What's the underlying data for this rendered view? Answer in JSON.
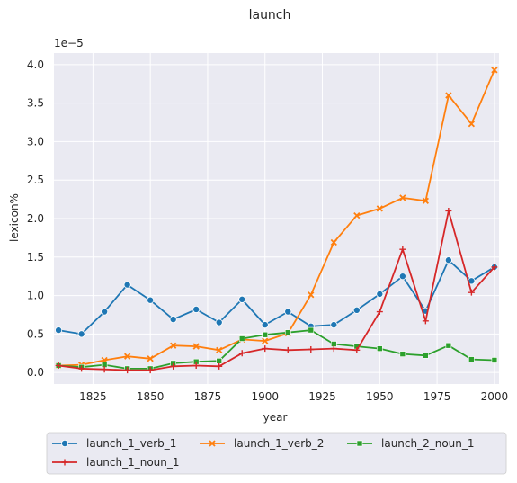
{
  "chart_data": {
    "type": "line",
    "title": "launch",
    "xlabel": "year",
    "ylabel": "lexicon%",
    "y_offset_label": "1e−5",
    "x": [
      1810,
      1820,
      1830,
      1840,
      1850,
      1860,
      1870,
      1880,
      1890,
      1900,
      1910,
      1920,
      1930,
      1940,
      1950,
      1960,
      1970,
      1980,
      1990,
      2000
    ],
    "xlim": [
      1808,
      2002
    ],
    "ylim": [
      -0.15,
      4.15
    ],
    "xticks": [
      "1825",
      "1850",
      "1875",
      "1900",
      "1925",
      "1950",
      "1975",
      "2000"
    ],
    "yticks": [
      "0.0",
      "0.5",
      "1.0",
      "1.5",
      "2.0",
      "2.5",
      "3.0",
      "3.5",
      "4.0"
    ],
    "grid": true,
    "legend_position": "bottom",
    "series": [
      {
        "name": "launch_1_verb_1",
        "color": "#1f77b4",
        "marker": "circle",
        "values": [
          0.55,
          0.5,
          0.79,
          1.14,
          0.94,
          0.69,
          0.82,
          0.65,
          0.95,
          0.62,
          0.79,
          0.6,
          0.62,
          0.81,
          1.02,
          1.25,
          0.8,
          1.46,
          1.19,
          1.37
        ]
      },
      {
        "name": "launch_1_verb_2",
        "color": "#ff7f0e",
        "marker": "x",
        "values": [
          0.09,
          0.1,
          0.16,
          0.21,
          0.18,
          0.35,
          0.34,
          0.29,
          0.43,
          0.41,
          0.51,
          1.01,
          1.69,
          2.04,
          2.13,
          2.27,
          2.23,
          3.6,
          3.23,
          3.93
        ]
      },
      {
        "name": "launch_2_noun_1",
        "color": "#2ca02c",
        "marker": "square",
        "values": [
          0.09,
          0.07,
          0.1,
          0.05,
          0.05,
          0.12,
          0.14,
          0.15,
          0.44,
          0.49,
          0.52,
          0.55,
          0.37,
          0.34,
          0.31,
          0.24,
          0.22,
          0.35,
          0.17,
          0.16
        ]
      },
      {
        "name": "launch_1_noun_1",
        "color": "#d62728",
        "marker": "plus",
        "values": [
          0.09,
          0.05,
          0.04,
          0.03,
          0.03,
          0.08,
          0.09,
          0.08,
          0.25,
          0.31,
          0.29,
          0.3,
          0.31,
          0.29,
          0.79,
          1.6,
          0.67,
          2.1,
          1.04,
          1.37
        ]
      }
    ]
  }
}
